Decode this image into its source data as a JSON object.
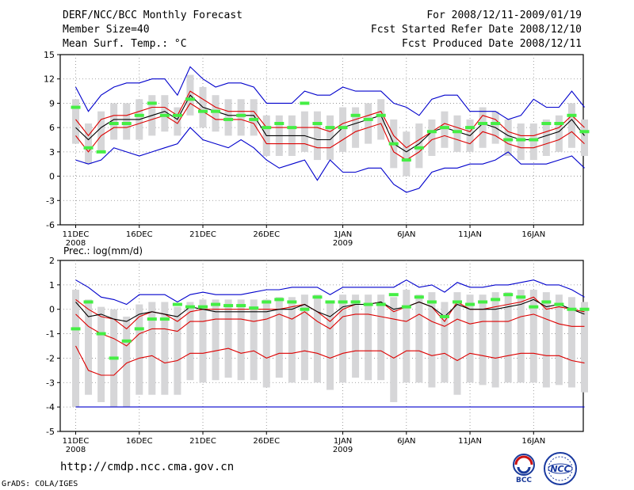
{
  "header": {
    "title": "DERF/NCC/BCC Monthly Forecast",
    "member_size": "Member Size=40",
    "variable": "Mean Surf. Temp.: °C",
    "forecast_period": "For 2008/12/11-2009/01/19",
    "started_refer_date": "Fcst Started Refer Date 2008/12/10",
    "produced_date": "Fcst Produced Date 2008/12/11"
  },
  "footer": {
    "url": "http://cmdp.ncc.cma.gov.cn",
    "credit": "GrADS: COLA/IGES",
    "logo_bcc": "BCC",
    "logo_ncc": "NCC"
  },
  "colors": {
    "ensemble_max_min": "#0000cc",
    "percentile_lines": "#dd0000",
    "median": "#000000",
    "observed_bar": "#44ee44",
    "spread_box": "#d6d6d8",
    "grid": "#888888"
  },
  "chart_data": [
    {
      "type": "line",
      "panel": "temperature",
      "title": "Mean Surf. Temp.: °C",
      "ylabel": "°C",
      "ylim": [
        -6,
        15
      ],
      "yticks": [
        -6,
        -3,
        0,
        3,
        6,
        9,
        12,
        15
      ],
      "xlim": [
        0,
        40
      ],
      "xticks": [
        {
          "day": 0,
          "label": "11DEC",
          "sub": "2008"
        },
        {
          "day": 5,
          "label": "16DEC",
          "sub": ""
        },
        {
          "day": 10,
          "label": "21DEC",
          "sub": ""
        },
        {
          "day": 15,
          "label": "26DEC",
          "sub": ""
        },
        {
          "day": 21,
          "label": "1JAN",
          "sub": "2009"
        },
        {
          "day": 26,
          "label": "6JAN",
          "sub": ""
        },
        {
          "day": 31,
          "label": "11JAN",
          "sub": ""
        },
        {
          "day": 36,
          "label": "16JAN",
          "sub": ""
        }
      ],
      "grid": true,
      "series": [
        {
          "name": "max",
          "color": "#0000cc",
          "values": [
            11,
            8,
            10,
            11,
            11.5,
            11.5,
            12,
            12,
            10,
            13.5,
            12,
            11,
            11.5,
            11.5,
            11,
            9,
            9,
            9,
            10.5,
            10,
            10,
            11,
            10.5,
            10.5,
            10.5,
            9,
            8.5,
            7.5,
            9.5,
            10,
            10,
            8,
            8,
            8,
            7,
            7.5,
            9.5,
            8.5,
            8.5,
            10.5,
            8.5
          ]
        },
        {
          "name": "p75",
          "color": "#dd0000",
          "values": [
            7,
            5,
            7,
            7.5,
            7.5,
            8,
            8.5,
            8.5,
            7.5,
            10.5,
            9.5,
            8.5,
            8,
            8,
            8,
            6,
            6,
            6,
            6,
            6,
            5.5,
            6.5,
            7,
            7.5,
            8,
            5,
            3.5,
            4.5,
            5.5,
            6.5,
            6,
            5.5,
            7.5,
            7,
            5.5,
            5,
            5,
            5.5,
            6,
            7.5,
            6
          ]
        },
        {
          "name": "median",
          "color": "#000000",
          "values": [
            6,
            4.5,
            6,
            7,
            7,
            7,
            7.5,
            8,
            7,
            10,
            8.5,
            8,
            7.5,
            7.5,
            7.5,
            5,
            5,
            5,
            5,
            4.5,
            4.5,
            6,
            6.5,
            7,
            7.5,
            4,
            3,
            4,
            5.5,
            6,
            5.5,
            5,
            6.5,
            6,
            5,
            4.5,
            4.5,
            5,
            5.5,
            7,
            5
          ]
        },
        {
          "name": "p25",
          "color": "#dd0000",
          "values": [
            5,
            3,
            5,
            6,
            6,
            6.5,
            7,
            7.5,
            6.5,
            9,
            8,
            7,
            7,
            7,
            6.5,
            4,
            4,
            4,
            4,
            3.5,
            3.5,
            4.5,
            5.5,
            6,
            6.5,
            3,
            2,
            3,
            4.5,
            5,
            4.5,
            4,
            5.5,
            5,
            4,
            3.5,
            3.5,
            4,
            4.5,
            5.5,
            4
          ]
        },
        {
          "name": "min",
          "color": "#0000cc",
          "values": [
            2,
            1.5,
            2,
            3.5,
            3,
            2.5,
            3,
            3.5,
            4,
            6,
            4.5,
            4,
            3.5,
            4.5,
            3.5,
            2,
            1,
            1.5,
            2,
            -0.5,
            2,
            0.5,
            0.5,
            1,
            1,
            -1,
            -2,
            -1.5,
            0.5,
            1,
            1,
            1.5,
            1.5,
            2,
            3,
            1.5,
            1.5,
            1.5,
            2,
            2.5,
            1
          ]
        },
        {
          "name": "box_top",
          "color": "#d6d6d8",
          "values": [
            9.5,
            6.5,
            8,
            9,
            9,
            9.5,
            10,
            10,
            8.5,
            12.5,
            11,
            10,
            9.5,
            9.5,
            9.5,
            7.5,
            7.5,
            7.5,
            8,
            8,
            7.5,
            8.5,
            8.5,
            9,
            9.5,
            7,
            5.5,
            6.5,
            7,
            8,
            7.5,
            7,
            8.5,
            8,
            7,
            6.5,
            6.5,
            7,
            7.5,
            9,
            7
          ]
        },
        {
          "name": "box_bottom",
          "color": "#d6d6d8",
          "values": [
            4,
            1.5,
            3,
            4.5,
            4.5,
            4.5,
            5,
            5.5,
            5,
            7.5,
            6,
            5.5,
            5,
            5,
            5,
            2.5,
            2.5,
            2.5,
            3,
            2,
            2,
            3,
            3.5,
            4,
            4.5,
            1,
            0,
            1,
            2.5,
            3.5,
            3,
            3,
            3.5,
            4,
            2.5,
            2,
            2,
            2.5,
            3,
            3.5,
            2.5
          ]
        },
        {
          "name": "observed",
          "color": "#44ee44",
          "values": [
            8.5,
            3.5,
            3,
            6.5,
            6.5,
            7.5,
            9,
            7.5,
            7.5,
            9.5,
            8,
            8,
            7,
            7.5,
            7,
            6,
            6.5,
            6,
            9,
            6.5,
            6,
            6,
            7.5,
            7,
            7.5,
            4,
            2,
            3.5,
            5.5,
            6,
            5.5,
            6,
            6.5,
            6.5,
            4.5,
            4.5,
            4.5,
            6.5,
            6.5,
            7.5,
            5.5
          ]
        }
      ]
    },
    {
      "type": "line",
      "panel": "precipitation",
      "title": "Prec.: log(mm/d)",
      "ylabel": "log(mm/d)",
      "ylim": [
        -5,
        2
      ],
      "yticks": [
        -5,
        -4,
        -3,
        -2,
        -1,
        0,
        1,
        2
      ],
      "xlim": [
        0,
        40
      ],
      "xticks": [
        {
          "day": 0,
          "label": "11DEC",
          "sub": "2008"
        },
        {
          "day": 5,
          "label": "16DEC",
          "sub": ""
        },
        {
          "day": 10,
          "label": "21DEC",
          "sub": ""
        },
        {
          "day": 15,
          "label": "26DEC",
          "sub": ""
        },
        {
          "day": 21,
          "label": "1JAN",
          "sub": "2009"
        },
        {
          "day": 26,
          "label": "6JAN",
          "sub": ""
        },
        {
          "day": 31,
          "label": "11JAN",
          "sub": ""
        },
        {
          "day": 36,
          "label": "16JAN",
          "sub": ""
        }
      ],
      "grid": true,
      "series": [
        {
          "name": "max",
          "color": "#0000cc",
          "values": [
            1.2,
            0.9,
            0.5,
            0.4,
            0.2,
            0.6,
            0.6,
            0.6,
            0.3,
            0.6,
            0.7,
            0.6,
            0.6,
            0.6,
            0.7,
            0.8,
            0.8,
            0.9,
            0.9,
            0.9,
            0.6,
            0.9,
            0.9,
            0.9,
            0.9,
            0.9,
            1.2,
            0.9,
            1,
            0.7,
            1.1,
            0.9,
            0.9,
            1,
            1,
            1.1,
            1.2,
            1,
            1,
            0.8,
            0.5
          ]
        },
        {
          "name": "upper_mid",
          "color": "#dd0000",
          "values": [
            0.4,
            0,
            -0.3,
            -0.4,
            -0.8,
            -0.3,
            -0.1,
            -0.2,
            -0.5,
            -0.1,
            0,
            0,
            0,
            0,
            0,
            0,
            0,
            0.1,
            0.2,
            -0.1,
            -0.5,
            0,
            0.2,
            0.2,
            0.3,
            -0.1,
            0.1,
            0.3,
            0.1,
            -0.5,
            0.3,
            0,
            0,
            0.1,
            0.2,
            0.3,
            0.5,
            0,
            0.1,
            0,
            -0.1
          ]
        },
        {
          "name": "median",
          "color": "#000000",
          "values": [
            0.3,
            -0.3,
            -0.2,
            -0.4,
            -0.5,
            -0.2,
            -0.1,
            -0.2,
            -0.3,
            0.1,
            0,
            -0.1,
            -0.1,
            -0.1,
            -0.1,
            -0.1,
            0,
            0,
            0.2,
            -0.1,
            -0.3,
            0.1,
            0.2,
            0.2,
            0.3,
            0,
            0.1,
            0.3,
            0.1,
            -0.3,
            0.2,
            0,
            0,
            0,
            0.1,
            0.2,
            0.4,
            0.1,
            0.2,
            0,
            -0.2
          ]
        },
        {
          "name": "lower_mid",
          "color": "#dd0000",
          "values": [
            -0.2,
            -0.7,
            -1,
            -1.2,
            -1.5,
            -1,
            -0.8,
            -0.8,
            -0.9,
            -0.5,
            -0.5,
            -0.4,
            -0.4,
            -0.4,
            -0.5,
            -0.4,
            -0.2,
            -0.4,
            -0.1,
            -0.5,
            -0.8,
            -0.3,
            -0.2,
            -0.2,
            -0.3,
            -0.4,
            -0.5,
            -0.2,
            -0.5,
            -0.7,
            -0.4,
            -0.6,
            -0.5,
            -0.5,
            -0.5,
            -0.3,
            -0.2,
            -0.4,
            -0.6,
            -0.7,
            -0.7
          ]
        },
        {
          "name": "low",
          "color": "#dd0000",
          "values": [
            -1.5,
            -2.5,
            -2.7,
            -2.7,
            -2.2,
            -2,
            -1.9,
            -2.2,
            -2.1,
            -1.8,
            -1.8,
            -1.7,
            -1.6,
            -1.8,
            -1.7,
            -2,
            -1.8,
            -1.8,
            -1.7,
            -1.8,
            -2,
            -1.8,
            -1.7,
            -1.7,
            -1.7,
            -2,
            -1.7,
            -1.7,
            -1.9,
            -1.8,
            -2.1,
            -1.8,
            -1.9,
            -2,
            -1.9,
            -1.8,
            -1.8,
            -1.9,
            -1.9,
            -2.1,
            -2.2
          ]
        },
        {
          "name": "floor",
          "color": "#0000cc",
          "values": [
            -4,
            -4,
            -4,
            -4,
            -4,
            -4,
            -4,
            -4,
            -4,
            -4,
            -4,
            -4,
            -4,
            -4,
            -4,
            -4,
            -4,
            -4,
            -4,
            -4,
            -4,
            -4,
            -4,
            -4,
            -4,
            -4,
            -4,
            -4,
            -4,
            -4,
            -4,
            -4,
            -4,
            -4,
            -4,
            -4,
            -4,
            -4,
            -4,
            -4,
            -4
          ]
        },
        {
          "name": "box_top",
          "color": "#d6d6d8",
          "values": [
            0.8,
            0.4,
            0.1,
            0,
            -0.3,
            0.2,
            0.3,
            0.3,
            0.1,
            0.3,
            0.4,
            0.4,
            0.4,
            0.4,
            0.4,
            0.4,
            0.5,
            0.5,
            0.6,
            0.6,
            0.3,
            0.6,
            0.6,
            0.6,
            0.6,
            0.5,
            0.8,
            0.6,
            0.7,
            0.3,
            0.7,
            0.6,
            0.6,
            0.7,
            0.7,
            0.8,
            0.8,
            0.7,
            0.6,
            0.5,
            0.3
          ]
        },
        {
          "name": "box_bottom",
          "color": "#d6d6d8",
          "values": [
            -4,
            -3.5,
            -3.8,
            -4,
            -4,
            -3.5,
            -3.5,
            -3.5,
            -3.5,
            -2.9,
            -3,
            -2.9,
            -2.8,
            -2.9,
            -2.9,
            -3.2,
            -2.8,
            -3,
            -2.9,
            -3,
            -3.3,
            -3,
            -2.8,
            -2.9,
            -2.9,
            -3.8,
            -3,
            -3,
            -3.2,
            -3,
            -3.5,
            -3,
            -3.1,
            -3.2,
            -3,
            -3,
            -3,
            -3.2,
            -3.1,
            -3.2,
            -3.4
          ]
        },
        {
          "name": "observed",
          "color": "#44ee44",
          "values": [
            -0.8,
            0.3,
            -1,
            -2,
            -1.3,
            -0.8,
            -0.4,
            -0.4,
            0.2,
            0.1,
            0.1,
            0.2,
            0.15,
            0.15,
            0.05,
            0.3,
            0.4,
            0.3,
            0,
            0.5,
            0.3,
            0.3,
            0.3,
            0.2,
            0.2,
            0.6,
            0.1,
            0.5,
            0.3,
            -0.3,
            0.3,
            0.2,
            0.3,
            0.4,
            0.6,
            0.5,
            0.1,
            0.3,
            0.2,
            0,
            0
          ]
        }
      ]
    }
  ]
}
